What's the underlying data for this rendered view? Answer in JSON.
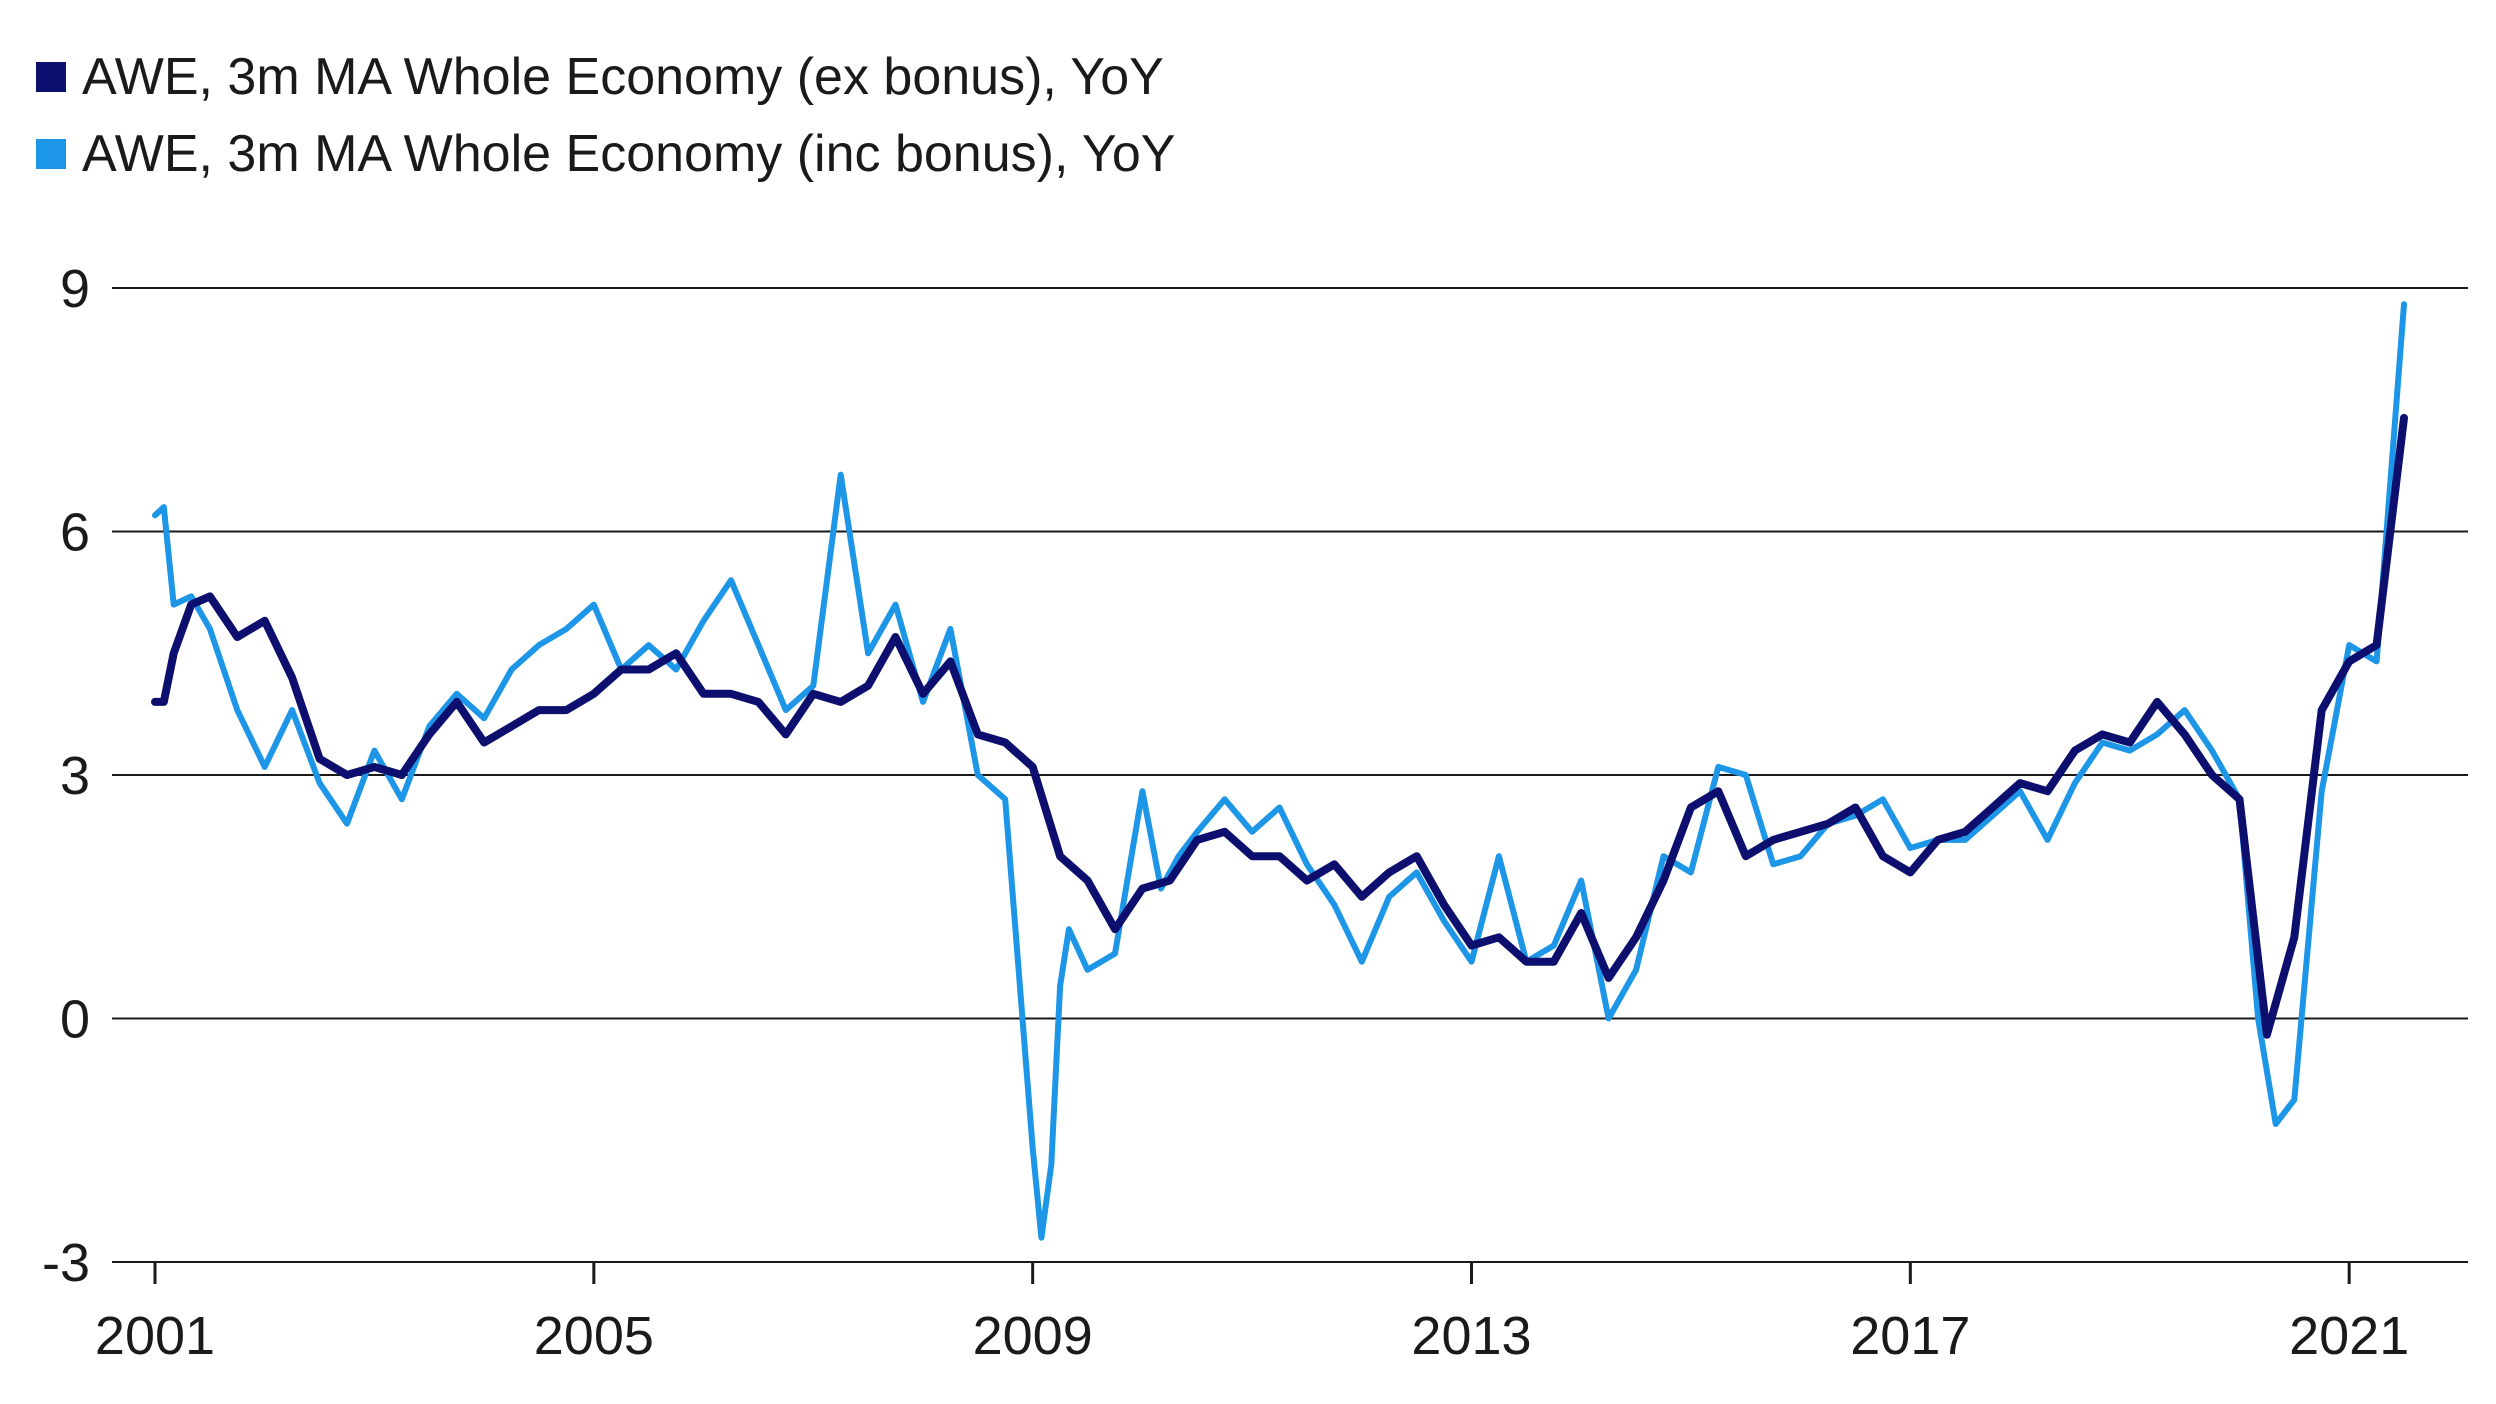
{
  "chart_data": {
    "type": "line",
    "title": "",
    "xlabel": "",
    "ylabel": "",
    "ylim": [
      -3,
      9
    ],
    "yticks": [
      -3,
      0,
      3,
      6,
      9
    ],
    "xlim": [
      2001,
      2021.6
    ],
    "xticks": [
      2001,
      2005,
      2009,
      2013,
      2017,
      2021
    ],
    "grid": "horizontal",
    "legend": "top-left",
    "series": [
      {
        "name": "AWE, 3m MA Whole Economy (ex bonus), YoY",
        "color": "#0d0f6e",
        "x": [
          2001.0,
          2001.08,
          2001.17,
          2001.33,
          2001.5,
          2001.75,
          2002.0,
          2002.25,
          2002.5,
          2002.75,
          2003.0,
          2003.25,
          2003.5,
          2003.75,
          2004.0,
          2004.25,
          2004.5,
          2004.75,
          2005.0,
          2005.25,
          2005.5,
          2005.75,
          2006.0,
          2006.25,
          2006.5,
          2006.75,
          2007.0,
          2007.25,
          2007.5,
          2007.75,
          2008.0,
          2008.25,
          2008.5,
          2008.75,
          2009.0,
          2009.25,
          2009.5,
          2009.75,
          2010.0,
          2010.25,
          2010.5,
          2010.75,
          2011.0,
          2011.25,
          2011.5,
          2011.75,
          2012.0,
          2012.25,
          2012.5,
          2012.75,
          2013.0,
          2013.25,
          2013.5,
          2013.75,
          2014.0,
          2014.25,
          2014.5,
          2014.75,
          2015.0,
          2015.25,
          2015.5,
          2015.75,
          2016.0,
          2016.25,
          2016.5,
          2016.75,
          2017.0,
          2017.25,
          2017.5,
          2017.75,
          2018.0,
          2018.25,
          2018.5,
          2018.75,
          2019.0,
          2019.25,
          2019.5,
          2019.75,
          2020.0,
          2020.25,
          2020.5,
          2020.75,
          2021.0,
          2021.25,
          2021.5
        ],
        "y": [
          3.9,
          3.9,
          4.5,
          5.1,
          5.2,
          4.7,
          4.9,
          4.2,
          3.2,
          3.0,
          3.1,
          3.0,
          3.5,
          3.9,
          3.4,
          3.6,
          3.8,
          3.8,
          4.0,
          4.3,
          4.3,
          4.5,
          4.0,
          4.0,
          3.9,
          3.5,
          4.0,
          3.9,
          4.1,
          4.7,
          4.0,
          4.4,
          3.5,
          3.4,
          3.1,
          2.0,
          1.7,
          1.1,
          1.6,
          1.7,
          2.2,
          2.3,
          2.0,
          2.0,
          1.7,
          1.9,
          1.5,
          1.8,
          2.0,
          1.4,
          0.9,
          1.0,
          0.7,
          0.7,
          1.3,
          0.5,
          1.0,
          1.7,
          2.6,
          2.8,
          2.0,
          2.2,
          2.3,
          2.4,
          2.6,
          2.0,
          1.8,
          2.2,
          2.3,
          2.6,
          2.9,
          2.8,
          3.3,
          3.5,
          3.4,
          3.9,
          3.5,
          3.0,
          2.7,
          -0.2,
          1.0,
          3.8,
          4.4,
          4.6,
          7.4
        ]
      },
      {
        "name": "AWE, 3m MA Whole Economy (inc bonus), YoY",
        "color": "#1e96e8",
        "x": [
          2001.0,
          2001.08,
          2001.17,
          2001.33,
          2001.5,
          2001.75,
          2002.0,
          2002.25,
          2002.5,
          2002.75,
          2003.0,
          2003.25,
          2003.5,
          2003.75,
          2004.0,
          2004.25,
          2004.5,
          2004.75,
          2005.0,
          2005.25,
          2005.5,
          2005.75,
          2006.0,
          2006.25,
          2006.5,
          2006.75,
          2007.0,
          2007.25,
          2007.5,
          2007.75,
          2008.0,
          2008.25,
          2008.5,
          2008.75,
          2009.0,
          2009.08,
          2009.17,
          2009.25,
          2009.33,
          2009.5,
          2009.75,
          2010.0,
          2010.17,
          2010.33,
          2010.5,
          2010.75,
          2011.0,
          2011.25,
          2011.5,
          2011.75,
          2012.0,
          2012.25,
          2012.5,
          2012.75,
          2013.0,
          2013.25,
          2013.5,
          2013.75,
          2014.0,
          2014.25,
          2014.5,
          2014.75,
          2015.0,
          2015.25,
          2015.5,
          2015.75,
          2016.0,
          2016.25,
          2016.5,
          2016.75,
          2017.0,
          2017.25,
          2017.5,
          2017.75,
          2018.0,
          2018.25,
          2018.5,
          2018.75,
          2019.0,
          2019.25,
          2019.5,
          2019.75,
          2020.0,
          2020.17,
          2020.33,
          2020.5,
          2020.75,
          2021.0,
          2021.25,
          2021.5
        ],
        "y": [
          6.2,
          6.3,
          5.1,
          5.2,
          4.8,
          3.8,
          3.1,
          3.8,
          2.9,
          2.4,
          3.3,
          2.7,
          3.6,
          4.0,
          3.7,
          4.3,
          4.6,
          4.8,
          5.1,
          4.3,
          4.6,
          4.3,
          4.9,
          5.4,
          4.6,
          3.8,
          4.1,
          6.7,
          4.5,
          5.1,
          3.9,
          4.8,
          3.0,
          2.7,
          -1.6,
          -2.7,
          -1.8,
          0.4,
          1.1,
          0.6,
          0.8,
          2.8,
          1.6,
          2.0,
          2.3,
          2.7,
          2.3,
          2.6,
          1.9,
          1.4,
          0.7,
          1.5,
          1.8,
          1.2,
          0.7,
          2.0,
          0.7,
          0.9,
          1.7,
          0.0,
          0.6,
          2.0,
          1.8,
          3.1,
          3.0,
          1.9,
          2.0,
          2.4,
          2.5,
          2.7,
          2.1,
          2.2,
          2.2,
          2.5,
          2.8,
          2.2,
          2.9,
          3.4,
          3.3,
          3.5,
          3.8,
          3.3,
          2.7,
          0.0,
          -1.3,
          -1.0,
          2.8,
          4.6,
          4.4,
          8.8
        ]
      }
    ]
  }
}
